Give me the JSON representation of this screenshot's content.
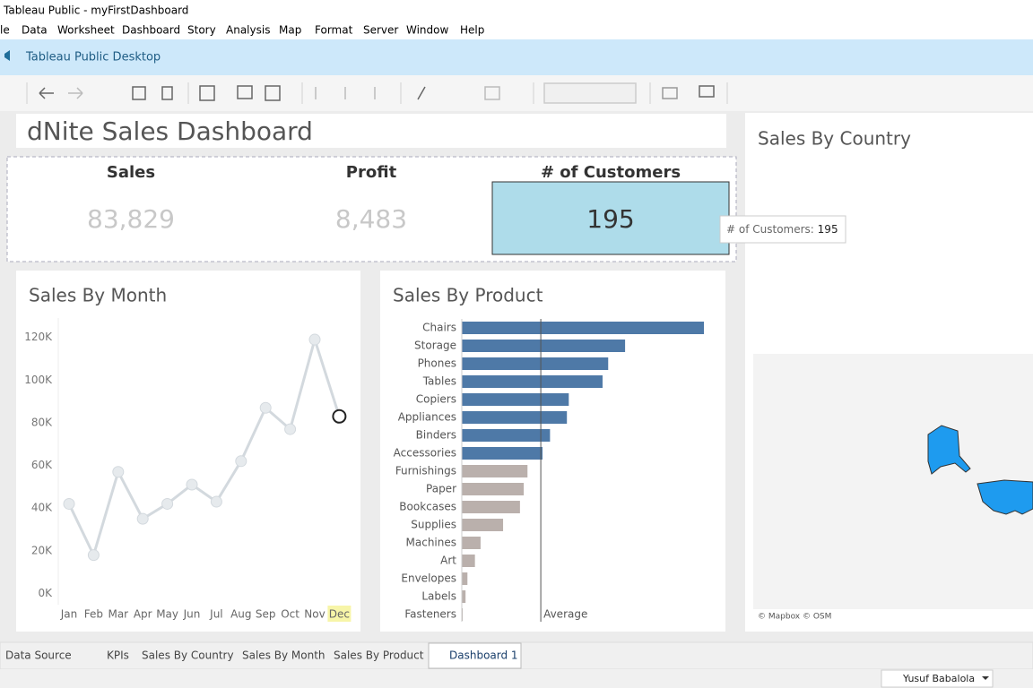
{
  "window": {
    "title": "Tableau Public - myFirstDashboard"
  },
  "menu": [
    "le",
    "Data",
    "Worksheet",
    "Dashboard",
    "Story",
    "Analysis",
    "Map",
    "Format",
    "Server",
    "Window",
    "Help"
  ],
  "banner": "Tableau Public Desktop",
  "dashboard": {
    "title": "dNite Sales Dashboard"
  },
  "kpis": [
    {
      "label": "Sales",
      "value": "83,829"
    },
    {
      "label": "Profit",
      "value": "8,483"
    },
    {
      "label": "# of Customers",
      "value": "195"
    }
  ],
  "tooltip": {
    "label": "# of Customers:",
    "value": "195"
  },
  "chart_data": [
    {
      "type": "line",
      "title": "Sales By Month",
      "categories": [
        "Jan",
        "Feb",
        "Mar",
        "Apr",
        "May",
        "Jun",
        "Jul",
        "Aug",
        "Sep",
        "Oct",
        "Nov",
        "Dec"
      ],
      "values": [
        42,
        18,
        57,
        35,
        42,
        51,
        43,
        62,
        87,
        77,
        119,
        83
      ],
      "color": "#d3d9de",
      "highlight_index": 11,
      "ylim": [
        -4,
        127
      ],
      "yticks": [
        {
          "value": 0,
          "label": "0K"
        },
        {
          "value": 20,
          "label": "20K"
        },
        {
          "value": 40,
          "label": "40K"
        },
        {
          "value": 60,
          "label": "60K"
        },
        {
          "value": 80,
          "label": "80K"
        },
        {
          "value": 100,
          "label": "100K"
        },
        {
          "value": 120,
          "label": "120K"
        }
      ]
    },
    {
      "type": "hbar",
      "title": "Sales By Product",
      "categories": [
        "Chairs",
        "Storage",
        "Phones",
        "Tables",
        "Copiers",
        "Appliances",
        "Binders",
        "Accessories",
        "Furnishings",
        "Paper",
        "Bookcases",
        "Supplies",
        "Machines",
        "Art",
        "Envelopes",
        "Labels",
        "Fasteners"
      ],
      "values": [
        129,
        87,
        78,
        75,
        57,
        56,
        47,
        43,
        35,
        33,
        31,
        22,
        10,
        7,
        3,
        2,
        0.5
      ],
      "above_color": "#4e79a7",
      "below_color": "#bab0ac",
      "reference_label": "Average"
    }
  ],
  "map": {
    "title": "Sales By Country",
    "attribution": "© Mapbox © OSM"
  },
  "tabs": [
    "Data Source",
    "KPIs",
    "Sales By Country",
    "Sales By Month",
    "Sales By Product",
    "Dashboard 1"
  ],
  "active_tab": 5,
  "user": "Yusuf Babalola"
}
